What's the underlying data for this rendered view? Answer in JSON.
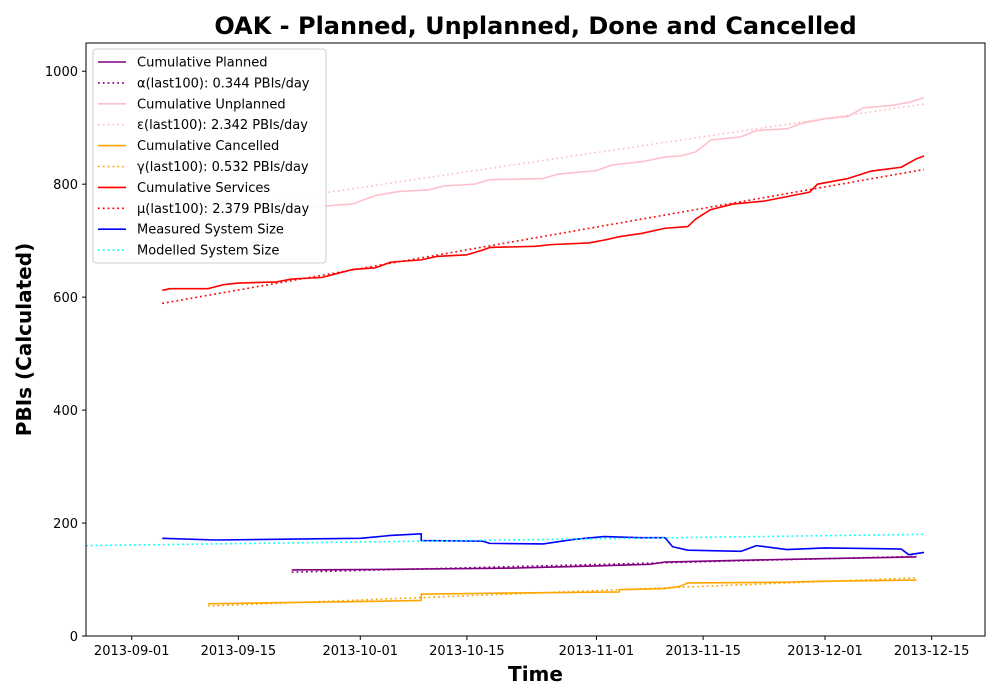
{
  "chart_data": {
    "type": "line",
    "title": "OAK - Planned, Unplanned, Done  and Cancelled",
    "xlabel": "Time",
    "ylabel": "PBIs (Calculated)",
    "xlim": [
      "2013-08-26",
      "2013-12-22"
    ],
    "ylim": [
      0,
      1050
    ],
    "x_ticks": [
      "2013-09-01",
      "2013-09-15",
      "2013-10-01",
      "2013-10-15",
      "2013-11-01",
      "2013-11-15",
      "2013-12-01",
      "2013-12-15"
    ],
    "y_ticks": [
      0,
      200,
      400,
      600,
      800,
      1000
    ],
    "grid": false,
    "legend_position": "top-left",
    "series": [
      {
        "name": "Cumulative Planned",
        "color": "#800080",
        "style": "solid",
        "points": [
          [
            "2013-09-22",
            117
          ],
          [
            "2013-10-05",
            118
          ],
          [
            "2013-10-20",
            120
          ],
          [
            "2013-11-01",
            124
          ],
          [
            "2013-11-08",
            127
          ],
          [
            "2013-11-10",
            131
          ],
          [
            "2013-11-20",
            134
          ],
          [
            "2013-11-27",
            136
          ],
          [
            "2013-12-05",
            138
          ],
          [
            "2013-12-13",
            140
          ]
        ]
      },
      {
        "name": "α(last100): 0.344 PBIs/day",
        "color": "#800080",
        "style": "dotted",
        "points": [
          [
            "2013-09-22",
            113
          ],
          [
            "2013-12-13",
            141
          ]
        ]
      },
      {
        "name": "Cumulative Unplanned",
        "color": "#ffc0cb",
        "style": "solid",
        "points": [
          [
            "2013-09-05",
            745
          ],
          [
            "2013-09-15",
            750
          ],
          [
            "2013-09-25",
            760
          ],
          [
            "2013-09-30",
            765
          ],
          [
            "2013-10-03",
            780
          ],
          [
            "2013-10-06",
            787
          ],
          [
            "2013-10-10",
            790
          ],
          [
            "2013-10-12",
            797
          ],
          [
            "2013-10-16",
            800
          ],
          [
            "2013-10-18",
            808
          ],
          [
            "2013-10-25",
            810
          ],
          [
            "2013-10-27",
            818
          ],
          [
            "2013-11-01",
            824
          ],
          [
            "2013-11-03",
            834
          ],
          [
            "2013-11-07",
            840
          ],
          [
            "2013-11-10",
            848
          ],
          [
            "2013-11-12",
            850
          ],
          [
            "2013-11-14",
            857
          ],
          [
            "2013-11-16",
            878
          ],
          [
            "2013-11-20",
            884
          ],
          [
            "2013-11-22",
            895
          ],
          [
            "2013-11-26",
            898
          ],
          [
            "2013-11-28",
            908
          ],
          [
            "2013-12-01",
            916
          ],
          [
            "2013-12-04",
            920
          ],
          [
            "2013-12-06",
            935
          ],
          [
            "2013-12-10",
            940
          ],
          [
            "2013-12-12",
            945
          ],
          [
            "2013-12-14",
            953
          ]
        ]
      },
      {
        "name": "ε(last100): 2.342 PBIs/day",
        "color": "#ffc0cb",
        "style": "dotted",
        "points": [
          [
            "2013-09-05",
            742
          ],
          [
            "2013-12-14",
            942
          ]
        ]
      },
      {
        "name": "Cumulative Cancelled",
        "color": "#ffa500",
        "style": "solid",
        "points": [
          [
            "2013-09-11",
            57
          ],
          [
            "2013-09-20",
            59
          ],
          [
            "2013-10-01",
            61
          ],
          [
            "2013-10-09",
            63
          ],
          [
            "2013-10-09",
            74
          ],
          [
            "2013-10-20",
            76
          ],
          [
            "2013-11-04",
            78
          ],
          [
            "2013-11-04",
            82
          ],
          [
            "2013-11-10",
            84
          ],
          [
            "2013-11-12",
            88
          ],
          [
            "2013-11-13",
            94
          ],
          [
            "2013-11-25",
            95
          ],
          [
            "2013-12-01",
            97
          ],
          [
            "2013-12-13",
            99
          ]
        ]
      },
      {
        "name": "γ(last100): 0.532 PBIs/day",
        "color": "#ffa500",
        "style": "dotted",
        "points": [
          [
            "2013-09-11",
            53
          ],
          [
            "2013-12-13",
            103
          ]
        ]
      },
      {
        "name": "Cumulative Services",
        "color": "#ff0000",
        "style": "solid",
        "points": [
          [
            "2013-09-05",
            612
          ],
          [
            "2013-09-06",
            615
          ],
          [
            "2013-09-11",
            615
          ],
          [
            "2013-09-13",
            622
          ],
          [
            "2013-09-15",
            625
          ],
          [
            "2013-09-20",
            627
          ],
          [
            "2013-09-22",
            632
          ],
          [
            "2013-09-26",
            635
          ],
          [
            "2013-09-28",
            642
          ],
          [
            "2013-09-30",
            649
          ],
          [
            "2013-10-03",
            652
          ],
          [
            "2013-10-05",
            662
          ],
          [
            "2013-10-09",
            666
          ],
          [
            "2013-10-11",
            672
          ],
          [
            "2013-10-15",
            675
          ],
          [
            "2013-10-17",
            683
          ],
          [
            "2013-10-18",
            688
          ],
          [
            "2013-10-24",
            690
          ],
          [
            "2013-10-26",
            693
          ],
          [
            "2013-10-31",
            696
          ],
          [
            "2013-11-02",
            701
          ],
          [
            "2013-11-04",
            707
          ],
          [
            "2013-11-07",
            713
          ],
          [
            "2013-11-10",
            722
          ],
          [
            "2013-11-13",
            725
          ],
          [
            "2013-11-14",
            738
          ],
          [
            "2013-11-16",
            755
          ],
          [
            "2013-11-19",
            765
          ],
          [
            "2013-11-23",
            770
          ],
          [
            "2013-11-26",
            778
          ],
          [
            "2013-11-29",
            786
          ],
          [
            "2013-11-30",
            800
          ],
          [
            "2013-12-04",
            810
          ],
          [
            "2013-12-07",
            823
          ],
          [
            "2013-12-11",
            830
          ],
          [
            "2013-12-13",
            845
          ],
          [
            "2013-12-14",
            850
          ]
        ]
      },
      {
        "name": "μ(last100): 2.379 PBIs/day",
        "color": "#ff0000",
        "style": "dotted",
        "points": [
          [
            "2013-09-05",
            589
          ],
          [
            "2013-12-14",
            826
          ]
        ]
      },
      {
        "name": "Measured System Size",
        "color": "#0000ff",
        "style": "solid",
        "points": [
          [
            "2013-09-05",
            173
          ],
          [
            "2013-09-12",
            170
          ],
          [
            "2013-09-25",
            172
          ],
          [
            "2013-10-01",
            173
          ],
          [
            "2013-10-05",
            178
          ],
          [
            "2013-10-09",
            181
          ],
          [
            "2013-10-09",
            169
          ],
          [
            "2013-10-17",
            168
          ],
          [
            "2013-10-18",
            164
          ],
          [
            "2013-10-25",
            163
          ],
          [
            "2013-10-29",
            171
          ],
          [
            "2013-11-02",
            176
          ],
          [
            "2013-11-07",
            174
          ],
          [
            "2013-11-10",
            174
          ],
          [
            "2013-11-11",
            158
          ],
          [
            "2013-11-13",
            152
          ],
          [
            "2013-11-20",
            150
          ],
          [
            "2013-11-22",
            160
          ],
          [
            "2013-11-26",
            153
          ],
          [
            "2013-12-01",
            156
          ],
          [
            "2013-12-06",
            155
          ],
          [
            "2013-12-11",
            154
          ],
          [
            "2013-12-12",
            144
          ],
          [
            "2013-12-14",
            148
          ]
        ]
      },
      {
        "name": "Modelled System Size",
        "color": "#00ffff",
        "style": "dotted",
        "points": [
          [
            "2013-08-26",
            160
          ],
          [
            "2013-12-14",
            180
          ]
        ]
      }
    ]
  }
}
